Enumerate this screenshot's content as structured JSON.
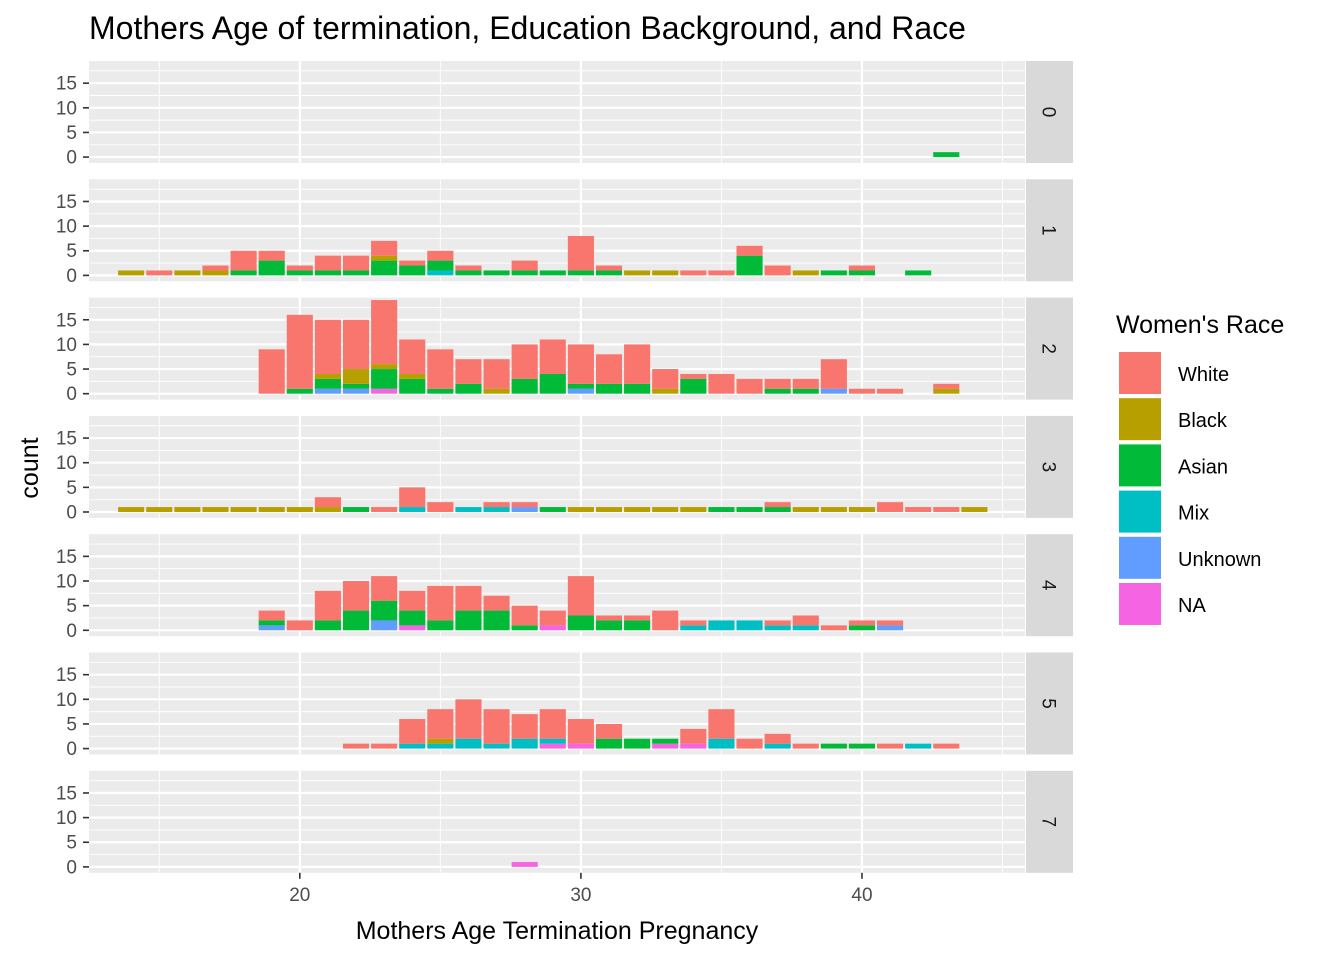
{
  "chart_data": {
    "type": "bar",
    "subtype": "stacked-histogram-faceted",
    "title": "Mothers Age of termination, Education Background, and Race",
    "xlabel": "Mothers Age Termination Pregnancy",
    "ylabel": "count",
    "xlim": [
      12.5,
      45.8
    ],
    "ylim": [
      -1.2,
      19.5
    ],
    "x_ticks": [
      20,
      30,
      40
    ],
    "y_ticks": [
      0,
      5,
      10,
      15
    ],
    "bin_width": 1,
    "facet_variable_levels": [
      "0",
      "1",
      "2",
      "3",
      "4",
      "5",
      "7"
    ],
    "legend": {
      "title": "Women's Race",
      "position": "right",
      "items": [
        {
          "label": "White",
          "color": "#F8766D"
        },
        {
          "label": "Black",
          "color": "#B79F00"
        },
        {
          "label": "Asian",
          "color": "#00BA38"
        },
        {
          "label": "Mix",
          "color": "#00BFC4"
        },
        {
          "label": "Unknown",
          "color": "#619CFF"
        },
        {
          "label": "NA",
          "color": "#F564E3"
        }
      ]
    },
    "series_order": [
      "NA",
      "Unknown",
      "Mix",
      "Asian",
      "Black",
      "White"
    ],
    "facets": [
      {
        "label": "0",
        "bars": [
          {
            "x": 43,
            "counts": {
              "Asian": 1
            }
          }
        ]
      },
      {
        "label": "1",
        "bars": [
          {
            "x": 14,
            "counts": {
              "Black": 1
            }
          },
          {
            "x": 15,
            "counts": {
              "White": 1
            }
          },
          {
            "x": 16,
            "counts": {
              "Black": 1
            }
          },
          {
            "x": 17,
            "counts": {
              "Black": 1,
              "White": 1
            }
          },
          {
            "x": 18,
            "counts": {
              "Asian": 1,
              "White": 4
            }
          },
          {
            "x": 19,
            "counts": {
              "Asian": 3,
              "White": 2
            }
          },
          {
            "x": 20,
            "counts": {
              "Asian": 1,
              "White": 1
            }
          },
          {
            "x": 21,
            "counts": {
              "Asian": 1,
              "White": 3
            }
          },
          {
            "x": 22,
            "counts": {
              "Asian": 1,
              "White": 3
            }
          },
          {
            "x": 23,
            "counts": {
              "Black": 1,
              "Asian": 3,
              "White": 3
            }
          },
          {
            "x": 24,
            "counts": {
              "Asian": 2,
              "White": 1
            }
          },
          {
            "x": 25,
            "counts": {
              "Mix": 1,
              "Asian": 2,
              "White": 2
            }
          },
          {
            "x": 26,
            "counts": {
              "Asian": 1,
              "White": 1
            }
          },
          {
            "x": 27,
            "counts": {
              "Asian": 1
            }
          },
          {
            "x": 28,
            "counts": {
              "Asian": 1,
              "White": 2
            }
          },
          {
            "x": 29,
            "counts": {
              "Asian": 1
            }
          },
          {
            "x": 30,
            "counts": {
              "Asian": 1,
              "White": 7
            }
          },
          {
            "x": 31,
            "counts": {
              "Asian": 1,
              "White": 1
            }
          },
          {
            "x": 32,
            "counts": {
              "Black": 1
            }
          },
          {
            "x": 33,
            "counts": {
              "Black": 1
            }
          },
          {
            "x": 34,
            "counts": {
              "White": 1
            }
          },
          {
            "x": 35,
            "counts": {
              "White": 1
            }
          },
          {
            "x": 36,
            "counts": {
              "Asian": 4,
              "White": 2
            }
          },
          {
            "x": 37,
            "counts": {
              "White": 2
            }
          },
          {
            "x": 38,
            "counts": {
              "Black": 1
            }
          },
          {
            "x": 39,
            "counts": {
              "Asian": 1
            }
          },
          {
            "x": 40,
            "counts": {
              "Asian": 1,
              "White": 1
            }
          },
          {
            "x": 42,
            "counts": {
              "Asian": 1
            }
          }
        ]
      },
      {
        "label": "2",
        "bars": [
          {
            "x": 19,
            "counts": {
              "White": 9
            }
          },
          {
            "x": 20,
            "counts": {
              "Asian": 1,
              "White": 15
            }
          },
          {
            "x": 21,
            "counts": {
              "Unknown": 1,
              "Asian": 2,
              "Black": 1,
              "White": 11
            }
          },
          {
            "x": 22,
            "counts": {
              "Unknown": 1,
              "Asian": 1,
              "Black": 3,
              "White": 10
            }
          },
          {
            "x": 23,
            "counts": {
              "NA": 1,
              "Asian": 4,
              "Black": 1,
              "White": 13
            }
          },
          {
            "x": 24,
            "counts": {
              "Asian": 3,
              "Black": 1,
              "White": 7
            }
          },
          {
            "x": 25,
            "counts": {
              "Asian": 1,
              "White": 8
            }
          },
          {
            "x": 26,
            "counts": {
              "Asian": 2,
              "White": 5
            }
          },
          {
            "x": 27,
            "counts": {
              "Black": 1,
              "White": 6
            }
          },
          {
            "x": 28,
            "counts": {
              "Asian": 3,
              "White": 7
            }
          },
          {
            "x": 29,
            "counts": {
              "Asian": 4,
              "White": 7
            }
          },
          {
            "x": 30,
            "counts": {
              "Unknown": 1,
              "Asian": 1,
              "White": 8
            }
          },
          {
            "x": 31,
            "counts": {
              "Asian": 2,
              "White": 6
            }
          },
          {
            "x": 32,
            "counts": {
              "Asian": 2,
              "White": 8
            }
          },
          {
            "x": 33,
            "counts": {
              "Black": 1,
              "White": 4
            }
          },
          {
            "x": 34,
            "counts": {
              "Asian": 3,
              "White": 1
            }
          },
          {
            "x": 35,
            "counts": {
              "White": 4
            }
          },
          {
            "x": 36,
            "counts": {
              "White": 3
            }
          },
          {
            "x": 37,
            "counts": {
              "Asian": 1,
              "White": 2
            }
          },
          {
            "x": 38,
            "counts": {
              "Asian": 1,
              "White": 2
            }
          },
          {
            "x": 39,
            "counts": {
              "Unknown": 1,
              "White": 6
            }
          },
          {
            "x": 40,
            "counts": {
              "White": 1
            }
          },
          {
            "x": 41,
            "counts": {
              "White": 1
            }
          },
          {
            "x": 43,
            "counts": {
              "Black": 1,
              "White": 1
            }
          }
        ]
      },
      {
        "label": "3",
        "bars": [
          {
            "x": 14,
            "counts": {
              "Black": 1
            }
          },
          {
            "x": 15,
            "counts": {
              "Black": 1
            }
          },
          {
            "x": 16,
            "counts": {
              "Black": 1
            }
          },
          {
            "x": 17,
            "counts": {
              "Black": 1
            }
          },
          {
            "x": 18,
            "counts": {
              "Black": 1
            }
          },
          {
            "x": 19,
            "counts": {
              "Black": 1
            }
          },
          {
            "x": 20,
            "counts": {
              "Black": 1
            }
          },
          {
            "x": 21,
            "counts": {
              "Black": 1,
              "White": 2
            }
          },
          {
            "x": 22,
            "counts": {
              "Asian": 1
            }
          },
          {
            "x": 23,
            "counts": {
              "White": 1
            }
          },
          {
            "x": 24,
            "counts": {
              "Mix": 1,
              "White": 4
            }
          },
          {
            "x": 25,
            "counts": {
              "White": 2
            }
          },
          {
            "x": 26,
            "counts": {
              "Mix": 1
            }
          },
          {
            "x": 27,
            "counts": {
              "Mix": 1,
              "White": 1
            }
          },
          {
            "x": 28,
            "counts": {
              "Unknown": 1,
              "White": 1
            }
          },
          {
            "x": 29,
            "counts": {
              "Asian": 1
            }
          },
          {
            "x": 30,
            "counts": {
              "Black": 1
            }
          },
          {
            "x": 31,
            "counts": {
              "Black": 1
            }
          },
          {
            "x": 32,
            "counts": {
              "Black": 1
            }
          },
          {
            "x": 33,
            "counts": {
              "Black": 1
            }
          },
          {
            "x": 34,
            "counts": {
              "Black": 1
            }
          },
          {
            "x": 35,
            "counts": {
              "Asian": 1
            }
          },
          {
            "x": 36,
            "counts": {
              "Asian": 1
            }
          },
          {
            "x": 37,
            "counts": {
              "Asian": 1,
              "White": 1
            }
          },
          {
            "x": 38,
            "counts": {
              "Black": 1
            }
          },
          {
            "x": 39,
            "counts": {
              "Black": 1
            }
          },
          {
            "x": 40,
            "counts": {
              "Black": 1
            }
          },
          {
            "x": 41,
            "counts": {
              "White": 2
            }
          },
          {
            "x": 42,
            "counts": {
              "White": 1
            }
          },
          {
            "x": 43,
            "counts": {
              "White": 1
            }
          },
          {
            "x": 44,
            "counts": {
              "Black": 1
            }
          }
        ]
      },
      {
        "label": "4",
        "bars": [
          {
            "x": 19,
            "counts": {
              "Unknown": 1,
              "Asian": 1,
              "White": 2
            }
          },
          {
            "x": 20,
            "counts": {
              "White": 2
            }
          },
          {
            "x": 21,
            "counts": {
              "Asian": 2,
              "White": 6
            }
          },
          {
            "x": 22,
            "counts": {
              "Asian": 4,
              "White": 6
            }
          },
          {
            "x": 23,
            "counts": {
              "Unknown": 2,
              "Asian": 4,
              "White": 5
            }
          },
          {
            "x": 24,
            "counts": {
              "NA": 1,
              "Asian": 3,
              "White": 4
            }
          },
          {
            "x": 25,
            "counts": {
              "Asian": 2,
              "White": 7
            }
          },
          {
            "x": 26,
            "counts": {
              "Asian": 4,
              "White": 5
            }
          },
          {
            "x": 27,
            "counts": {
              "Asian": 4,
              "White": 3
            }
          },
          {
            "x": 28,
            "counts": {
              "Asian": 1,
              "White": 4
            }
          },
          {
            "x": 29,
            "counts": {
              "NA": 1,
              "White": 3
            }
          },
          {
            "x": 30,
            "counts": {
              "Asian": 3,
              "White": 8
            }
          },
          {
            "x": 31,
            "counts": {
              "Asian": 2,
              "White": 1
            }
          },
          {
            "x": 32,
            "counts": {
              "Asian": 2,
              "White": 1
            }
          },
          {
            "x": 33,
            "counts": {
              "White": 4
            }
          },
          {
            "x": 34,
            "counts": {
              "Mix": 1,
              "White": 1
            }
          },
          {
            "x": 35,
            "counts": {
              "Mix": 2
            }
          },
          {
            "x": 36,
            "counts": {
              "Mix": 2
            }
          },
          {
            "x": 37,
            "counts": {
              "Mix": 1,
              "White": 1
            }
          },
          {
            "x": 38,
            "counts": {
              "Mix": 1,
              "White": 2
            }
          },
          {
            "x": 39,
            "counts": {
              "White": 1
            }
          },
          {
            "x": 40,
            "counts": {
              "Asian": 1,
              "White": 1
            }
          },
          {
            "x": 41,
            "counts": {
              "Unknown": 1,
              "White": 1
            }
          }
        ]
      },
      {
        "label": "5",
        "bars": [
          {
            "x": 22,
            "counts": {
              "White": 1
            }
          },
          {
            "x": 23,
            "counts": {
              "White": 1
            }
          },
          {
            "x": 24,
            "counts": {
              "Mix": 1,
              "White": 5
            }
          },
          {
            "x": 25,
            "counts": {
              "Mix": 1,
              "Black": 1,
              "White": 6
            }
          },
          {
            "x": 26,
            "counts": {
              "Mix": 2,
              "White": 8
            }
          },
          {
            "x": 27,
            "counts": {
              "Mix": 1,
              "White": 7
            }
          },
          {
            "x": 28,
            "counts": {
              "Mix": 2,
              "White": 5
            }
          },
          {
            "x": 29,
            "counts": {
              "NA": 1,
              "Mix": 1,
              "White": 6
            }
          },
          {
            "x": 30,
            "counts": {
              "NA": 1,
              "White": 5
            }
          },
          {
            "x": 31,
            "counts": {
              "Asian": 2,
              "White": 3
            }
          },
          {
            "x": 32,
            "counts": {
              "Asian": 2
            }
          },
          {
            "x": 33,
            "counts": {
              "NA": 1,
              "Asian": 1
            }
          },
          {
            "x": 34,
            "counts": {
              "NA": 1,
              "White": 3
            }
          },
          {
            "x": 35,
            "counts": {
              "Mix": 2,
              "White": 6
            }
          },
          {
            "x": 36,
            "counts": {
              "White": 2
            }
          },
          {
            "x": 37,
            "counts": {
              "Mix": 1,
              "White": 2
            }
          },
          {
            "x": 38,
            "counts": {
              "White": 1
            }
          },
          {
            "x": 39,
            "counts": {
              "Asian": 1
            }
          },
          {
            "x": 40,
            "counts": {
              "Asian": 1
            }
          },
          {
            "x": 41,
            "counts": {
              "White": 1
            }
          },
          {
            "x": 42,
            "counts": {
              "Mix": 1
            }
          },
          {
            "x": 43,
            "counts": {
              "White": 1
            }
          }
        ]
      },
      {
        "label": "7",
        "bars": [
          {
            "x": 28,
            "counts": {
              "NA": 1
            }
          }
        ]
      }
    ]
  }
}
